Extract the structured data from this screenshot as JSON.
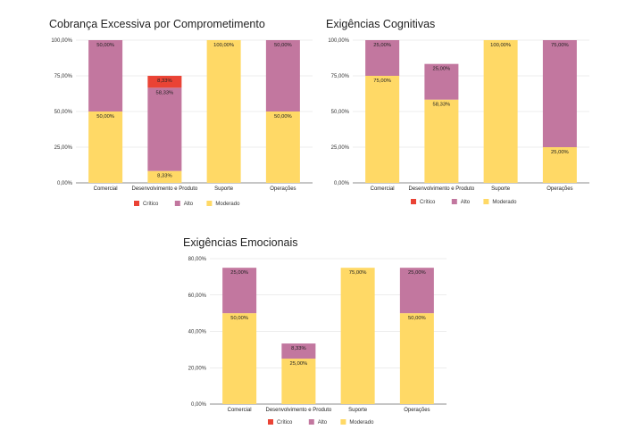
{
  "colors": {
    "critico": "#ea4335",
    "alto": "#c2779f",
    "moderado": "#ffd966",
    "grid": "#d9d9d9",
    "axis": "#666666"
  },
  "chart_data": [
    {
      "id": "cobranca",
      "type": "bar",
      "stacked": true,
      "title": "Cobrança Excessiva por Comprometimento",
      "categories": [
        "Comercial",
        "Desenvolvimento e Produto",
        "Suporte",
        "Operações"
      ],
      "series": [
        {
          "name": "Crítico",
          "key": "critico",
          "values": [
            0,
            8.33,
            0,
            0
          ],
          "labels": [
            "",
            "8,33%",
            "",
            ""
          ]
        },
        {
          "name": "Alto",
          "key": "alto",
          "values": [
            50,
            58.33,
            0,
            50
          ],
          "labels": [
            "50,00%",
            "58,33%",
            "",
            "50,00%"
          ]
        },
        {
          "name": "Moderado",
          "key": "moderado",
          "values": [
            50,
            8.33,
            100,
            50
          ],
          "labels": [
            "50,00%",
            "8,33%",
            "100,00%",
            "50,00%"
          ]
        }
      ],
      "yticks": [
        "0,00%",
        "25,00%",
        "50,00%",
        "75,00%",
        "100,00%"
      ],
      "ylim": [
        0,
        100
      ],
      "legend": [
        "Crítico",
        "Alto",
        "Moderado"
      ]
    },
    {
      "id": "cognitivas",
      "type": "bar",
      "stacked": true,
      "title": "Exigências Cognitivas",
      "categories": [
        "Comercial",
        "Desenvolvimento e Produto",
        "Suporte",
        "Operações"
      ],
      "series": [
        {
          "name": "Crítico",
          "key": "critico",
          "values": [
            0,
            0,
            0,
            0
          ],
          "labels": [
            "",
            "",
            "",
            ""
          ]
        },
        {
          "name": "Alto",
          "key": "alto",
          "values": [
            25,
            25,
            0,
            75
          ],
          "labels": [
            "25,00%",
            "25,00%",
            "",
            "75,00%"
          ]
        },
        {
          "name": "Moderado",
          "key": "moderado",
          "values": [
            75,
            58.33,
            100,
            25
          ],
          "labels": [
            "75,00%",
            "58,33%",
            "100,00%",
            "25,00%"
          ]
        }
      ],
      "yticks": [
        "0,00%",
        "25,00%",
        "50,00%",
        "75,00%",
        "100,00%"
      ],
      "ylim": [
        0,
        100
      ],
      "legend": [
        "Crítico",
        "Alto",
        "Moderado"
      ]
    },
    {
      "id": "emocionais",
      "type": "bar",
      "stacked": true,
      "title": "Exigências Emocionais",
      "categories": [
        "Comercial",
        "Desenvolvimento e Produto",
        "Suporte",
        "Operações"
      ],
      "series": [
        {
          "name": "Crítico",
          "key": "critico",
          "values": [
            0,
            0,
            0,
            0
          ],
          "labels": [
            "",
            "",
            "",
            ""
          ]
        },
        {
          "name": "Alto",
          "key": "alto",
          "values": [
            25,
            8.33,
            0,
            25
          ],
          "labels": [
            "25,00%",
            "8,33%",
            "",
            "25,00%"
          ]
        },
        {
          "name": "Moderado",
          "key": "moderado",
          "values": [
            50,
            25,
            75,
            50
          ],
          "labels": [
            "50,00%",
            "25,00%",
            "75,00%",
            "50,00%"
          ]
        }
      ],
      "yticks": [
        "0,00%",
        "20,00%",
        "40,00%",
        "60,00%",
        "80,00%"
      ],
      "ylim": [
        0,
        80
      ],
      "legend": [
        "Crítico",
        "Alto",
        "Moderado"
      ]
    }
  ]
}
